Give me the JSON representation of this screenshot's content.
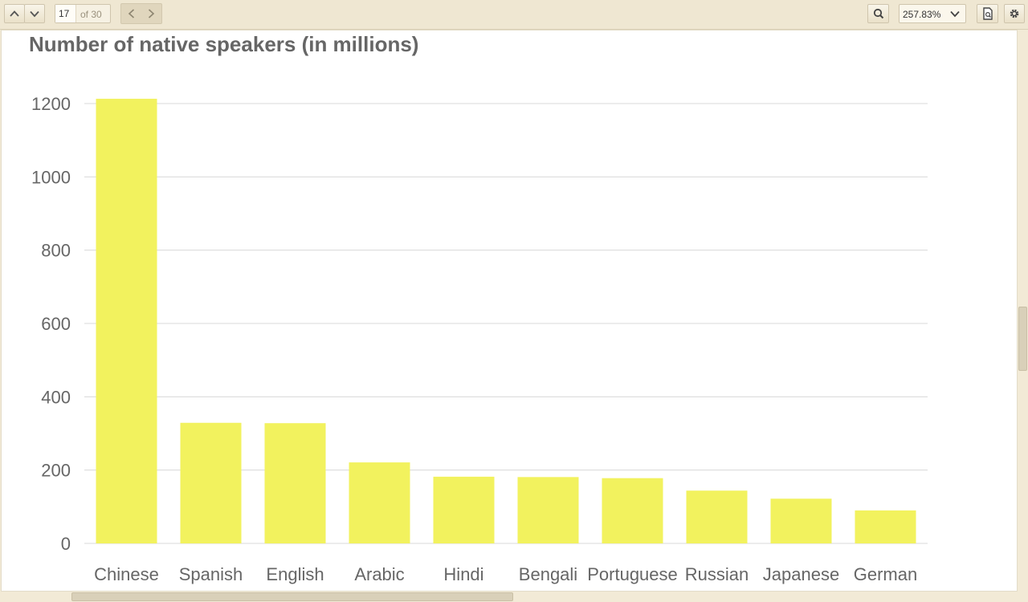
{
  "toolbar": {
    "page_number": "17",
    "page_count": "of 30",
    "zoom": "257.83%",
    "icons": [
      "chevron-up-icon",
      "chevron-down-icon",
      "chevron-left-icon",
      "chevron-right-icon",
      "search-icon",
      "document-icon",
      "gear-icon"
    ]
  },
  "colors": {
    "bar": "#f2f25e",
    "text": "#666666",
    "grid": "#d8d8d8",
    "toolbar_bg": "#efe7d2"
  },
  "chart_data": {
    "type": "bar",
    "title": "Number of native speakers (in millions)",
    "xlabel": "",
    "ylabel": "",
    "categories": [
      "Chinese",
      "Spanish",
      "English",
      "Arabic",
      "Hindi",
      "Bengali",
      "Portuguese",
      "Russian",
      "Japanese",
      "German"
    ],
    "values": [
      1213,
      329,
      328,
      221,
      182,
      181,
      178,
      144,
      122,
      90
    ],
    "ylim": [
      0,
      1200
    ],
    "yticks": [
      0,
      200,
      400,
      600,
      800,
      1000,
      1200
    ],
    "grid": true,
    "legend": "none"
  }
}
